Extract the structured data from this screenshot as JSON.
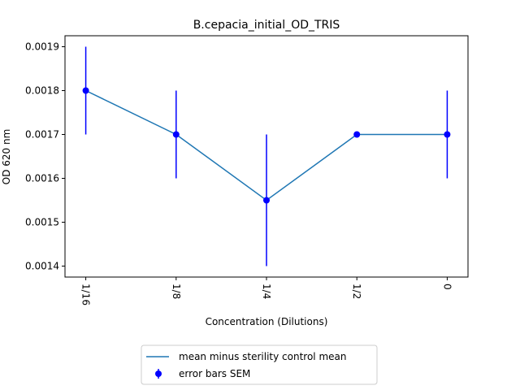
{
  "chart_data": {
    "type": "line",
    "title": "B.cepacia_initial_OD_TRIS",
    "xlabel": "Concentration (Dilutions)",
    "ylabel": "OD 620 nm",
    "categories": [
      "1/16",
      "1/8",
      "1/4",
      "1/2",
      "0"
    ],
    "series": [
      {
        "name": "mean minus sterility control mean",
        "values": [
          0.0018,
          0.0017,
          0.00155,
          0.0017,
          0.0017
        ],
        "color": "#1f77b4"
      }
    ],
    "error_bars": {
      "name": "error bars SEM",
      "values": [
        0.0001,
        0.0001,
        0.00015,
        0.0,
        0.0001
      ],
      "color": "#0000ff"
    },
    "ylim": [
      0.001375,
      0.001925
    ],
    "yticks": [
      0.0014,
      0.0015,
      0.0016,
      0.0017,
      0.0018,
      0.0019
    ],
    "ytick_labels": [
      "0.0014",
      "0.0015",
      "0.0016",
      "0.0017",
      "0.0018",
      "0.0019"
    ],
    "xtick_rotation": "vertical (rotated 90° clockwise)",
    "grid": false,
    "legend_placement": "bottom-center"
  }
}
